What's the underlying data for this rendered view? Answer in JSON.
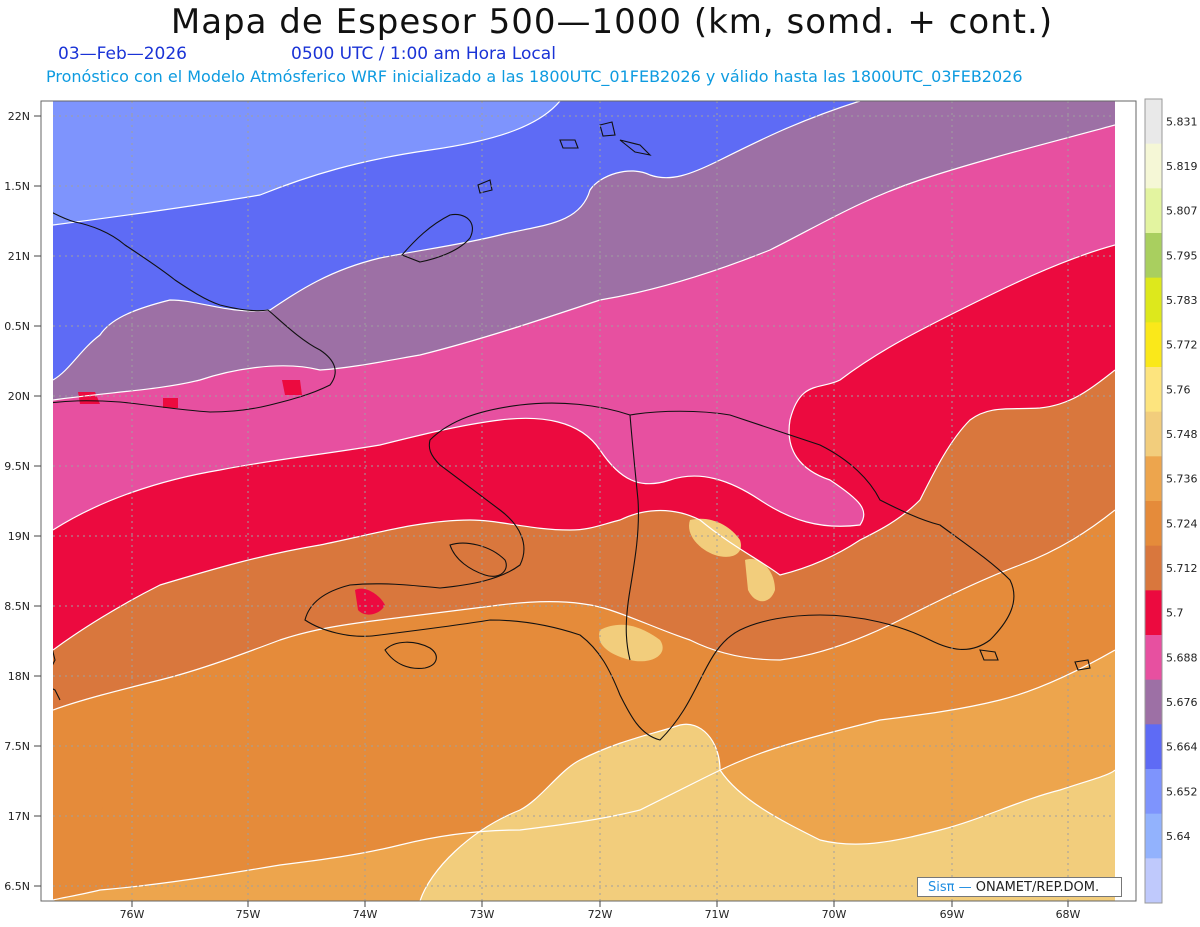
{
  "header": {
    "title": "Mapa de Espesor 500—1000 (km, somd. + cont.)",
    "date": "03—Feb—2026",
    "time": "0500 UTC / 1:00 am Hora Local",
    "subtitle": "Pronóstico con el Modelo Atmósferico WRF inicializado a las 1800UTC_01FEB2026 y válido hasta las  1800UTC_03FEB2026"
  },
  "axes": {
    "lat_labels": [
      "22N",
      "1.5N",
      "21N",
      "0.5N",
      "20N",
      "9.5N",
      "19N",
      "8.5N",
      "18N",
      "7.5N",
      "17N",
      "6.5N"
    ],
    "lon_labels": [
      "76W",
      "75W",
      "74W",
      "73W",
      "72W",
      "71W",
      "70W",
      "69W",
      "68W"
    ]
  },
  "colorbar": {
    "labels": [
      "5.831",
      "5.819",
      "5.807",
      "5.795",
      "5.783",
      "5.772",
      "5.76",
      "5.748",
      "5.736",
      "5.724",
      "5.712",
      "5.7",
      "5.688",
      "5.676",
      "5.664",
      "5.652",
      "5.64"
    ],
    "colors": [
      "#e9e9e9",
      "#f5f7d6",
      "#e3f4a0",
      "#a9cf5f",
      "#dde81c",
      "#fae81a",
      "#fde47e",
      "#f2cd7c",
      "#eda54d",
      "#e58b3a",
      "#d9773d",
      "#ec0a3f",
      "#e750a0",
      "#9d70a5",
      "#5e6bf5",
      "#7e94fd",
      "#92b2fd",
      "#bfc9fc"
    ]
  },
  "credit": {
    "brand": "Sisπ —",
    "org": " ONAMET/REP.DOM."
  }
}
